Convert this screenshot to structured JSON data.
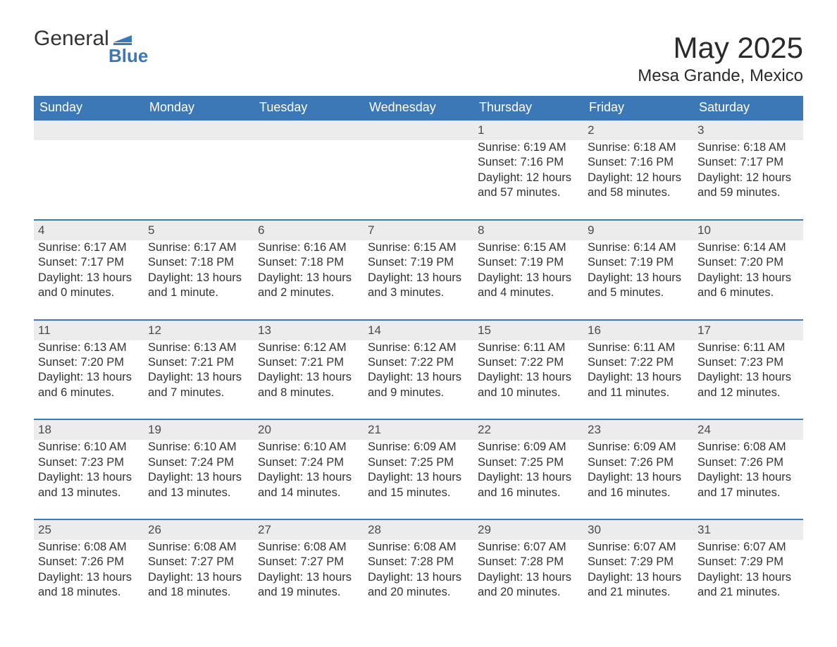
{
  "brand": {
    "word1": "General",
    "word2": "Blue",
    "text_color": "#333333",
    "accent_color": "#3b78b5"
  },
  "header": {
    "title": "May 2025",
    "location": "Mesa Grande, Mexico",
    "title_fontsize": 42,
    "location_fontsize": 24,
    "text_color": "#2a2a2a"
  },
  "calendar": {
    "type": "table",
    "days_of_week": [
      "Sunday",
      "Monday",
      "Tuesday",
      "Wednesday",
      "Thursday",
      "Friday",
      "Saturday"
    ],
    "header_bg": "#3b78b5",
    "header_text_color": "#ffffff",
    "daynum_row_bg": "#ececec",
    "daynum_text_color": "#4a4a4a",
    "row_divider_color": "#3b78b5",
    "body_text_color": "#333333",
    "body_fontsize": 16.5,
    "weeks": [
      [
        null,
        null,
        null,
        null,
        {
          "n": "1",
          "sunrise": "Sunrise: 6:19 AM",
          "sunset": "Sunset: 7:16 PM",
          "daylight": "Daylight: 12 hours and 57 minutes."
        },
        {
          "n": "2",
          "sunrise": "Sunrise: 6:18 AM",
          "sunset": "Sunset: 7:16 PM",
          "daylight": "Daylight: 12 hours and 58 minutes."
        },
        {
          "n": "3",
          "sunrise": "Sunrise: 6:18 AM",
          "sunset": "Sunset: 7:17 PM",
          "daylight": "Daylight: 12 hours and 59 minutes."
        }
      ],
      [
        {
          "n": "4",
          "sunrise": "Sunrise: 6:17 AM",
          "sunset": "Sunset: 7:17 PM",
          "daylight": "Daylight: 13 hours and 0 minutes."
        },
        {
          "n": "5",
          "sunrise": "Sunrise: 6:17 AM",
          "sunset": "Sunset: 7:18 PM",
          "daylight": "Daylight: 13 hours and 1 minute."
        },
        {
          "n": "6",
          "sunrise": "Sunrise: 6:16 AM",
          "sunset": "Sunset: 7:18 PM",
          "daylight": "Daylight: 13 hours and 2 minutes."
        },
        {
          "n": "7",
          "sunrise": "Sunrise: 6:15 AM",
          "sunset": "Sunset: 7:19 PM",
          "daylight": "Daylight: 13 hours and 3 minutes."
        },
        {
          "n": "8",
          "sunrise": "Sunrise: 6:15 AM",
          "sunset": "Sunset: 7:19 PM",
          "daylight": "Daylight: 13 hours and 4 minutes."
        },
        {
          "n": "9",
          "sunrise": "Sunrise: 6:14 AM",
          "sunset": "Sunset: 7:19 PM",
          "daylight": "Daylight: 13 hours and 5 minutes."
        },
        {
          "n": "10",
          "sunrise": "Sunrise: 6:14 AM",
          "sunset": "Sunset: 7:20 PM",
          "daylight": "Daylight: 13 hours and 6 minutes."
        }
      ],
      [
        {
          "n": "11",
          "sunrise": "Sunrise: 6:13 AM",
          "sunset": "Sunset: 7:20 PM",
          "daylight": "Daylight: 13 hours and 6 minutes."
        },
        {
          "n": "12",
          "sunrise": "Sunrise: 6:13 AM",
          "sunset": "Sunset: 7:21 PM",
          "daylight": "Daylight: 13 hours and 7 minutes."
        },
        {
          "n": "13",
          "sunrise": "Sunrise: 6:12 AM",
          "sunset": "Sunset: 7:21 PM",
          "daylight": "Daylight: 13 hours and 8 minutes."
        },
        {
          "n": "14",
          "sunrise": "Sunrise: 6:12 AM",
          "sunset": "Sunset: 7:22 PM",
          "daylight": "Daylight: 13 hours and 9 minutes."
        },
        {
          "n": "15",
          "sunrise": "Sunrise: 6:11 AM",
          "sunset": "Sunset: 7:22 PM",
          "daylight": "Daylight: 13 hours and 10 minutes."
        },
        {
          "n": "16",
          "sunrise": "Sunrise: 6:11 AM",
          "sunset": "Sunset: 7:22 PM",
          "daylight": "Daylight: 13 hours and 11 minutes."
        },
        {
          "n": "17",
          "sunrise": "Sunrise: 6:11 AM",
          "sunset": "Sunset: 7:23 PM",
          "daylight": "Daylight: 13 hours and 12 minutes."
        }
      ],
      [
        {
          "n": "18",
          "sunrise": "Sunrise: 6:10 AM",
          "sunset": "Sunset: 7:23 PM",
          "daylight": "Daylight: 13 hours and 13 minutes."
        },
        {
          "n": "19",
          "sunrise": "Sunrise: 6:10 AM",
          "sunset": "Sunset: 7:24 PM",
          "daylight": "Daylight: 13 hours and 13 minutes."
        },
        {
          "n": "20",
          "sunrise": "Sunrise: 6:10 AM",
          "sunset": "Sunset: 7:24 PM",
          "daylight": "Daylight: 13 hours and 14 minutes."
        },
        {
          "n": "21",
          "sunrise": "Sunrise: 6:09 AM",
          "sunset": "Sunset: 7:25 PM",
          "daylight": "Daylight: 13 hours and 15 minutes."
        },
        {
          "n": "22",
          "sunrise": "Sunrise: 6:09 AM",
          "sunset": "Sunset: 7:25 PM",
          "daylight": "Daylight: 13 hours and 16 minutes."
        },
        {
          "n": "23",
          "sunrise": "Sunrise: 6:09 AM",
          "sunset": "Sunset: 7:26 PM",
          "daylight": "Daylight: 13 hours and 16 minutes."
        },
        {
          "n": "24",
          "sunrise": "Sunrise: 6:08 AM",
          "sunset": "Sunset: 7:26 PM",
          "daylight": "Daylight: 13 hours and 17 minutes."
        }
      ],
      [
        {
          "n": "25",
          "sunrise": "Sunrise: 6:08 AM",
          "sunset": "Sunset: 7:26 PM",
          "daylight": "Daylight: 13 hours and 18 minutes."
        },
        {
          "n": "26",
          "sunrise": "Sunrise: 6:08 AM",
          "sunset": "Sunset: 7:27 PM",
          "daylight": "Daylight: 13 hours and 18 minutes."
        },
        {
          "n": "27",
          "sunrise": "Sunrise: 6:08 AM",
          "sunset": "Sunset: 7:27 PM",
          "daylight": "Daylight: 13 hours and 19 minutes."
        },
        {
          "n": "28",
          "sunrise": "Sunrise: 6:08 AM",
          "sunset": "Sunset: 7:28 PM",
          "daylight": "Daylight: 13 hours and 20 minutes."
        },
        {
          "n": "29",
          "sunrise": "Sunrise: 6:07 AM",
          "sunset": "Sunset: 7:28 PM",
          "daylight": "Daylight: 13 hours and 20 minutes."
        },
        {
          "n": "30",
          "sunrise": "Sunrise: 6:07 AM",
          "sunset": "Sunset: 7:29 PM",
          "daylight": "Daylight: 13 hours and 21 minutes."
        },
        {
          "n": "31",
          "sunrise": "Sunrise: 6:07 AM",
          "sunset": "Sunset: 7:29 PM",
          "daylight": "Daylight: 13 hours and 21 minutes."
        }
      ]
    ]
  }
}
